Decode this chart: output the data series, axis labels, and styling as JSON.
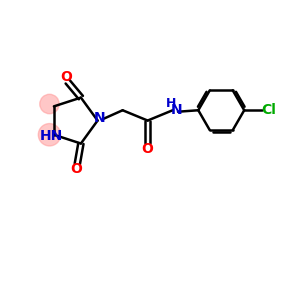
{
  "bg_color": "#ffffff",
  "bond_color": "#000000",
  "N_color": "#0000cc",
  "O_color": "#ff0000",
  "Cl_color": "#00aa00",
  "NH_color": "#0000cc",
  "line_width": 1.8,
  "font_size": 10,
  "fig_width": 3.0,
  "fig_height": 3.0,
  "dpi": 100,
  "xlim": [
    0,
    10
  ],
  "ylim": [
    0,
    10
  ],
  "ring_highlight_color": "#ff9999",
  "ring_highlight_alpha": 0.55
}
